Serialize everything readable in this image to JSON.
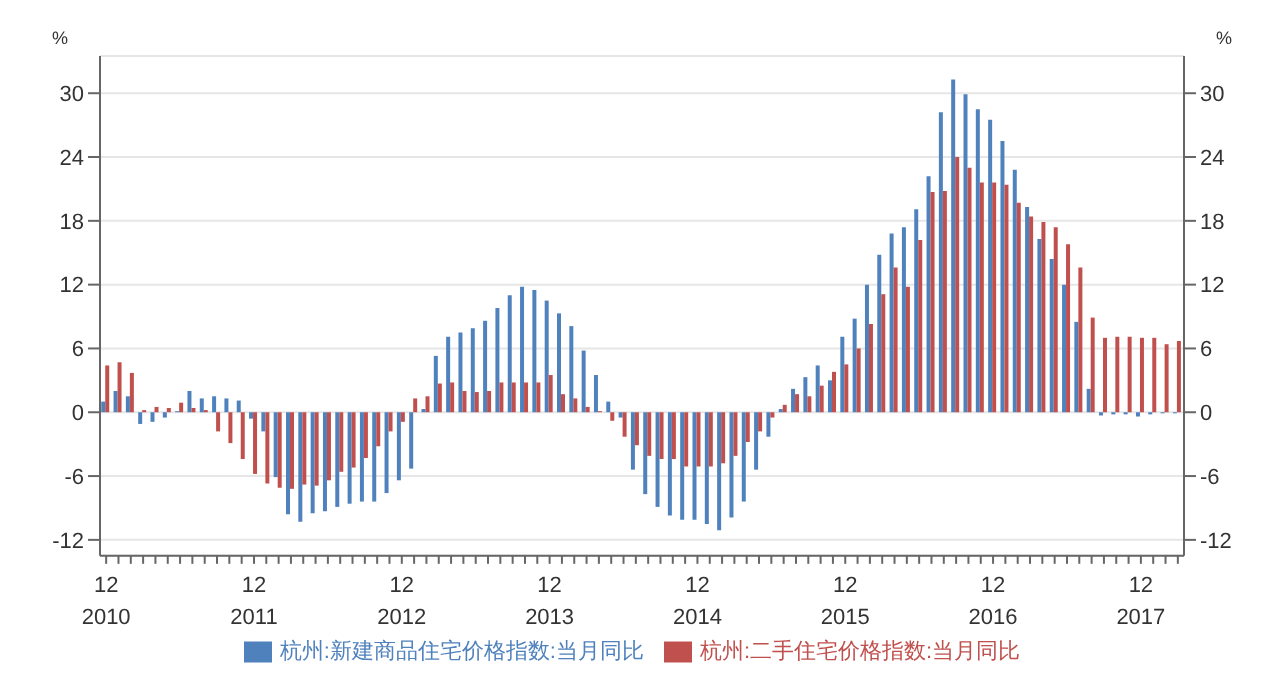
{
  "chart_data": {
    "type": "bar",
    "ylabel": "%",
    "y2label": "%",
    "categories": [
      "12\n2010",
      null,
      null,
      null,
      null,
      null,
      null,
      null,
      null,
      null,
      null,
      null,
      "12\n2011",
      null,
      null,
      null,
      null,
      null,
      null,
      null,
      null,
      null,
      null,
      null,
      "12\n2012",
      null,
      null,
      null,
      null,
      null,
      null,
      null,
      null,
      null,
      null,
      null,
      "12\n2013",
      null,
      null,
      null,
      null,
      null,
      null,
      null,
      null,
      null,
      null,
      null,
      "12\n2014",
      null,
      null,
      null,
      null,
      null,
      null,
      null,
      null,
      null,
      null,
      null,
      "12\n2015",
      null,
      null,
      null,
      null,
      null,
      null,
      null,
      null,
      null,
      null,
      null,
      "12\n2016",
      null,
      null,
      null,
      null,
      null,
      null,
      null,
      null,
      null,
      null,
      null,
      "12\n2017",
      null,
      null,
      null
    ],
    "series": [
      {
        "name": "杭州:新建商品住宅价格指数:当月同比",
        "color": "#4f81bd",
        "values": [
          1.0,
          2.0,
          1.5,
          -1.1,
          -0.9,
          -0.5,
          0.1,
          2.0,
          1.3,
          1.5,
          1.3,
          1.1,
          -0.6,
          -1.8,
          -6.1,
          -9.6,
          -10.3,
          -9.5,
          -9.3,
          -8.9,
          -8.6,
          -8.4,
          -8.4,
          -7.6,
          -6.4,
          -5.3,
          0.3,
          5.3,
          7.1,
          7.5,
          7.9,
          8.6,
          9.8,
          11.0,
          11.8,
          11.5,
          10.5,
          9.3,
          8.1,
          5.8,
          3.5,
          1.0,
          -0.5,
          -5.4,
          -7.7,
          -8.9,
          -9.7,
          -10.1,
          -10.1,
          -10.5,
          -11.1,
          -9.9,
          -8.4,
          -5.4,
          -2.3,
          0.3,
          2.2,
          3.3,
          4.4,
          3.0,
          7.1,
          8.8,
          12.0,
          14.8,
          16.8,
          17.4,
          19.1,
          22.2,
          28.2,
          31.3,
          29.9,
          28.5,
          27.5,
          25.5,
          22.8,
          19.3,
          16.3,
          14.4,
          12.0,
          8.5,
          2.2,
          -0.3,
          -0.2,
          -0.2,
          -0.4,
          -0.2,
          -0.1,
          -0.1
        ]
      },
      {
        "name": "杭州:二手住宅价格指数:当月同比",
        "color": "#c0504d",
        "values": [
          4.4,
          4.7,
          3.7,
          0.2,
          0.5,
          0.4,
          0.9,
          0.4,
          0.2,
          -1.8,
          -2.9,
          -4.4,
          -5.8,
          -6.7,
          -7.1,
          -7.2,
          -6.8,
          -6.9,
          -6.4,
          -5.6,
          -5.2,
          -4.3,
          -3.2,
          -1.8,
          -0.9,
          1.3,
          1.5,
          2.7,
          2.8,
          2.0,
          1.9,
          2.0,
          2.8,
          2.8,
          2.8,
          2.8,
          3.5,
          1.7,
          1.3,
          0.5,
          0.1,
          -0.8,
          -2.3,
          -3.1,
          -4.1,
          -4.4,
          -4.4,
          -5.1,
          -5.1,
          -5.1,
          -4.8,
          -4.1,
          -2.8,
          -1.8,
          -0.5,
          0.7,
          1.7,
          1.5,
          2.5,
          3.8,
          4.5,
          6.0,
          8.3,
          11.1,
          13.6,
          11.8,
          16.2,
          20.7,
          20.8,
          24.0,
          23.0,
          21.6,
          21.6,
          21.4,
          19.7,
          18.4,
          17.9,
          17.4,
          15.8,
          13.6,
          8.9,
          7.0,
          7.1,
          7.1,
          7.0,
          7.0,
          6.4,
          6.7
        ]
      }
    ],
    "ylim": [
      -13.5,
      33.5
    ],
    "yticks": [
      -12,
      -6,
      0,
      6,
      12,
      18,
      24,
      30
    ],
    "y2lim": [
      -13.5,
      33.5
    ],
    "y2ticks": [
      -12,
      -6,
      0,
      6,
      12,
      18,
      24,
      30
    ],
    "grid": "y",
    "legend": "bottom"
  }
}
